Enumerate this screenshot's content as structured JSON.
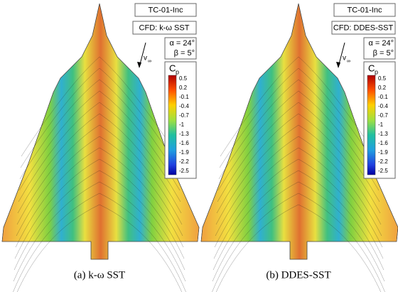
{
  "panels": [
    {
      "case": "TC-01-Inc",
      "cfd": "CFD: k-ω SST",
      "alpha": "α = 24°",
      "beta": "β = 5°",
      "velocity_symbol": "v",
      "velocity_subscript": "∞",
      "legend_symbol": "C",
      "legend_subscript": "p",
      "legend_ticks": [
        "0.5",
        "0.2",
        "-0.1",
        "-0.4",
        "-0.7",
        "-1",
        "-1.3",
        "-1.6",
        "-1.9",
        "-2.2",
        "-2.5"
      ],
      "caption": "(a) k-ω SST"
    },
    {
      "case": "TC-01-Inc",
      "cfd": "CFD: DDES-SST",
      "alpha": "α = 24°",
      "beta": "β = 5°",
      "velocity_symbol": "v",
      "velocity_subscript": "∞",
      "legend_symbol": "C",
      "legend_subscript": "p",
      "legend_ticks": [
        "0.5",
        "0.2",
        "-0.1",
        "-0.4",
        "-0.7",
        "-1",
        "-1.3",
        "-1.6",
        "-1.9",
        "-2.2",
        "-2.5"
      ],
      "caption": "(b) DDES-SST"
    }
  ]
}
